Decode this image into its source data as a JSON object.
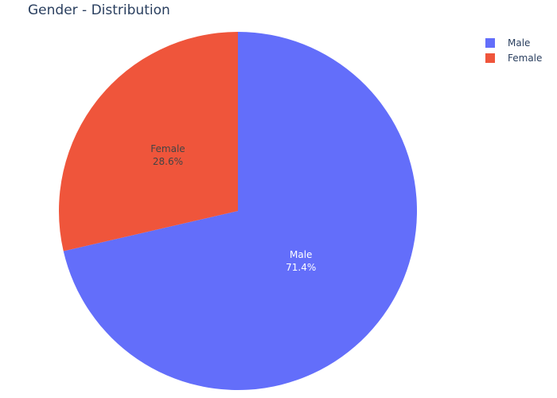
{
  "chart_data": {
    "type": "pie",
    "title": "Gender - Distribution",
    "slices": [
      {
        "label": "Male",
        "percent": 71.4,
        "percent_text": "71.4%",
        "color": "#636efa"
      },
      {
        "label": "Female",
        "percent": 28.6,
        "percent_text": "28.6%",
        "color": "#ef553b"
      }
    ],
    "legend_position": "top-right",
    "text_colors": {
      "Male": "#ffffff",
      "Female": "#444444"
    }
  }
}
